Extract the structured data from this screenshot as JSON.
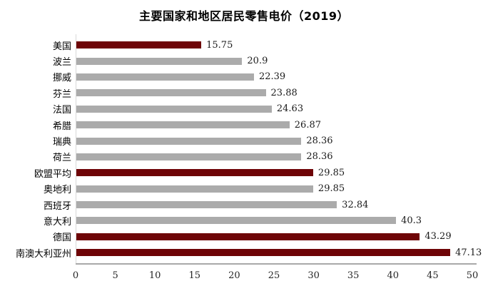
{
  "chart_data": {
    "type": "bar",
    "orientation": "horizontal",
    "title": "主要国家和地区居民零售电价（2019）",
    "categories": [
      "美国",
      "波兰",
      "挪威",
      "芬兰",
      "法国",
      "希腊",
      "瑞典",
      "荷兰",
      "欧盟平均",
      "奥地利",
      "西班牙",
      "意大利",
      "德国",
      "南澳大利亚州"
    ],
    "values": [
      15.75,
      20.9,
      22.39,
      23.88,
      24.63,
      26.87,
      28.36,
      28.36,
      29.85,
      29.85,
      32.84,
      40.3,
      43.29,
      47.13
    ],
    "value_labels": [
      "15.75",
      "20.9",
      "22.39",
      "23.88",
      "24.63",
      "26.87",
      "28.36",
      "28.36",
      "29.85",
      "29.85",
      "32.84",
      "40.3",
      "43.29",
      "47.13"
    ],
    "highlight_indices": [
      0,
      8,
      12,
      13
    ],
    "xlim": [
      0,
      50
    ],
    "x_ticks": [
      0,
      5,
      10,
      15,
      20,
      25,
      30,
      35,
      40,
      45,
      50
    ],
    "legend": null,
    "grid": "off",
    "colors": {
      "highlight": "#6e0407",
      "default": "#ababab",
      "axis_line": "#a9a9a9",
      "category_axis_line": "#d9d9d9",
      "text": "#1a1a1a"
    }
  }
}
